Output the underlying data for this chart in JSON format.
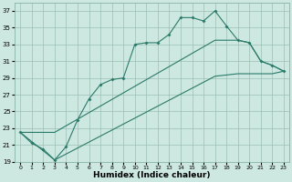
{
  "xlabel": "Humidex (Indice chaleur)",
  "background_color": "#cde8e0",
  "grid_color": "#9bbfb5",
  "line_color": "#2a7a6a",
  "xlim": [
    -0.5,
    23.5
  ],
  "ylim": [
    19,
    38
  ],
  "xticks": [
    0,
    1,
    2,
    3,
    4,
    5,
    6,
    7,
    8,
    9,
    10,
    11,
    12,
    13,
    14,
    15,
    16,
    17,
    18,
    19,
    20,
    21,
    22,
    23
  ],
  "yticks": [
    19,
    21,
    23,
    25,
    27,
    29,
    31,
    33,
    35,
    37
  ],
  "line1_x": [
    0,
    1,
    2,
    3,
    4,
    5,
    6,
    7,
    8,
    9,
    10,
    11,
    12,
    13,
    14,
    15,
    16,
    17,
    18,
    19,
    20,
    21,
    22,
    23
  ],
  "line1_y": [
    22.5,
    21.2,
    20.5,
    19.2,
    20.8,
    24.0,
    26.5,
    28.2,
    28.8,
    29.0,
    33.0,
    33.2,
    33.2,
    34.2,
    36.2,
    36.2,
    35.8,
    37.0,
    35.2,
    33.5,
    33.2,
    31.0,
    30.5,
    29.8
  ],
  "line2_x": [
    0,
    3,
    17,
    19,
    20,
    21,
    22,
    23
  ],
  "line2_y": [
    22.5,
    22.5,
    33.5,
    33.5,
    33.2,
    31.0,
    30.5,
    29.8
  ],
  "line3_x": [
    0,
    3,
    17,
    19,
    20,
    21,
    22,
    23
  ],
  "line3_y": [
    22.5,
    19.2,
    29.2,
    29.5,
    29.5,
    29.5,
    29.5,
    29.8
  ]
}
